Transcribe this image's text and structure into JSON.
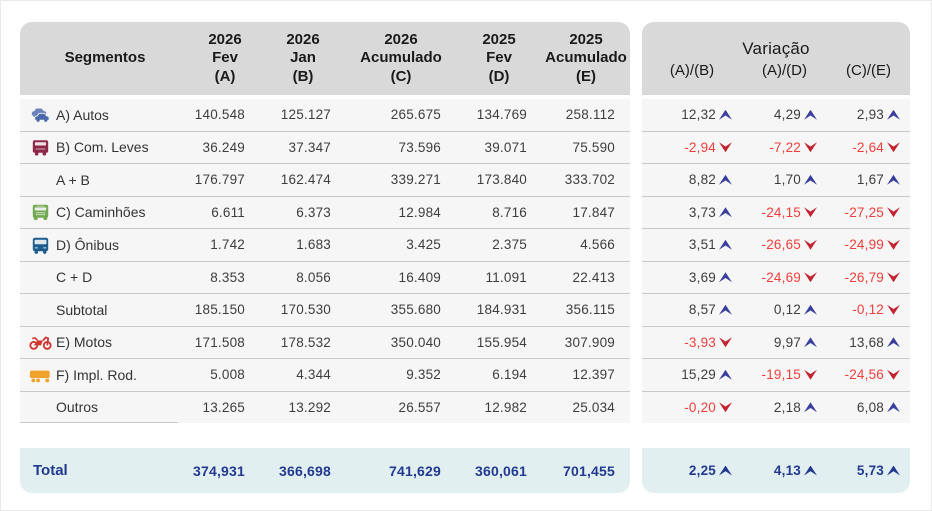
{
  "chart_data": {
    "type": "table",
    "segments_header": "Segmentos",
    "value_columns": [
      {
        "year": "2026",
        "period": "Fev",
        "letter": "(A)"
      },
      {
        "year": "2026",
        "period": "Jan",
        "letter": "(B)"
      },
      {
        "year": "2026",
        "period": "Acumulado",
        "letter": "(C)"
      },
      {
        "year": "2025",
        "period": "Fev",
        "letter": "(D)"
      },
      {
        "year": "2025",
        "period": "Acumulado",
        "letter": "(E)"
      }
    ],
    "variation_title": "Variação",
    "variation_columns": [
      "(A)/(B)",
      "(A)/(D)",
      "(C)/(E)"
    ],
    "rows": [
      {
        "label": "A) Autos",
        "icon": "autos-icon",
        "values": [
          "140.548",
          "125.127",
          "265.675",
          "134.769",
          "258.112"
        ],
        "variations": [
          {
            "value": "12,32",
            "direction": "up"
          },
          {
            "value": "4,29",
            "direction": "up"
          },
          {
            "value": "2,93",
            "direction": "up"
          }
        ]
      },
      {
        "label": "B) Com. Leves",
        "icon": "com-leves-icon",
        "values": [
          "36.249",
          "37.347",
          "73.596",
          "39.071",
          "75.590"
        ],
        "variations": [
          {
            "value": "-2,94",
            "direction": "down"
          },
          {
            "value": "-7,22",
            "direction": "down"
          },
          {
            "value": "-2,64",
            "direction": "down"
          }
        ]
      },
      {
        "label": "A + B",
        "icon": null,
        "values": [
          "176.797",
          "162.474",
          "339.271",
          "173.840",
          "333.702"
        ],
        "variations": [
          {
            "value": "8,82",
            "direction": "up"
          },
          {
            "value": "1,70",
            "direction": "up"
          },
          {
            "value": "1,67",
            "direction": "up"
          }
        ]
      },
      {
        "label": "C) Caminhões",
        "icon": "caminhoes-icon",
        "values": [
          "6.611",
          "6.373",
          "12.984",
          "8.716",
          "17.847"
        ],
        "variations": [
          {
            "value": "3,73",
            "direction": "up"
          },
          {
            "value": "-24,15",
            "direction": "down"
          },
          {
            "value": "-27,25",
            "direction": "down"
          }
        ]
      },
      {
        "label": "D) Ônibus",
        "icon": "onibus-icon",
        "values": [
          "1.742",
          "1.683",
          "3.425",
          "2.375",
          "4.566"
        ],
        "variations": [
          {
            "value": "3,51",
            "direction": "up"
          },
          {
            "value": "-26,65",
            "direction": "down"
          },
          {
            "value": "-24,99",
            "direction": "down"
          }
        ]
      },
      {
        "label": "C + D",
        "icon": null,
        "values": [
          "8.353",
          "8.056",
          "16.409",
          "11.091",
          "22.413"
        ],
        "variations": [
          {
            "value": "3,69",
            "direction": "up"
          },
          {
            "value": "-24,69",
            "direction": "down"
          },
          {
            "value": "-26,79",
            "direction": "down"
          }
        ]
      },
      {
        "label": "Subtotal",
        "icon": null,
        "values": [
          "185.150",
          "170.530",
          "355.680",
          "184.931",
          "356.115"
        ],
        "variations": [
          {
            "value": "8,57",
            "direction": "up"
          },
          {
            "value": "0,12",
            "direction": "up"
          },
          {
            "value": "-0,12",
            "direction": "down"
          }
        ]
      },
      {
        "label": "E) Motos",
        "icon": "motos-icon",
        "values": [
          "171.508",
          "178.532",
          "350.040",
          "155.954",
          "307.909"
        ],
        "variations": [
          {
            "value": "-3,93",
            "direction": "down"
          },
          {
            "value": "9,97",
            "direction": "up"
          },
          {
            "value": "13,68",
            "direction": "up"
          }
        ]
      },
      {
        "label": "F) Impl. Rod.",
        "icon": "impl-rod-icon",
        "values": [
          "5.008",
          "4.344",
          "9.352",
          "6.194",
          "12.397"
        ],
        "variations": [
          {
            "value": "15,29",
            "direction": "up"
          },
          {
            "value": "-19,15",
            "direction": "down"
          },
          {
            "value": "-24,56",
            "direction": "down"
          }
        ]
      },
      {
        "label": "Outros",
        "icon": null,
        "values": [
          "13.265",
          "13.292",
          "26.557",
          "12.982",
          "25.034"
        ],
        "variations": [
          {
            "value": "-0,20",
            "direction": "down"
          },
          {
            "value": "2,18",
            "direction": "up"
          },
          {
            "value": "6,08",
            "direction": "up"
          }
        ]
      }
    ],
    "total_row": {
      "label": "Total",
      "values": [
        "374,931",
        "366,698",
        "741,629",
        "360,061",
        "701,455"
      ],
      "variations": [
        {
          "value": "2,25",
          "direction": "up"
        },
        {
          "value": "4,13",
          "direction": "up"
        },
        {
          "value": "5,73",
          "direction": "up"
        }
      ]
    }
  },
  "colors": {
    "header_bg": "#d9d9d9",
    "header_text": "#1a1a1a",
    "row_bg": "#f6f6f6",
    "divider": "#c9c9c9",
    "value_text": "#3d3d3d",
    "label_text": "#333333",
    "total_bg": "#e2eff1",
    "total_text": "#21398e",
    "positive_text": "#3d3d3d",
    "negative_text": "#ef3f3c",
    "up_arrow": "#3a3f9c",
    "down_arrow": "#c32430",
    "icon_autos": "#4a69ad",
    "icon_com_leves": "#8d2846",
    "icon_caminhoes": "#72a851",
    "icon_onibus": "#1d5c8d",
    "icon_motos": "#cf352e",
    "icon_impl_rod": "#efa32b"
  }
}
